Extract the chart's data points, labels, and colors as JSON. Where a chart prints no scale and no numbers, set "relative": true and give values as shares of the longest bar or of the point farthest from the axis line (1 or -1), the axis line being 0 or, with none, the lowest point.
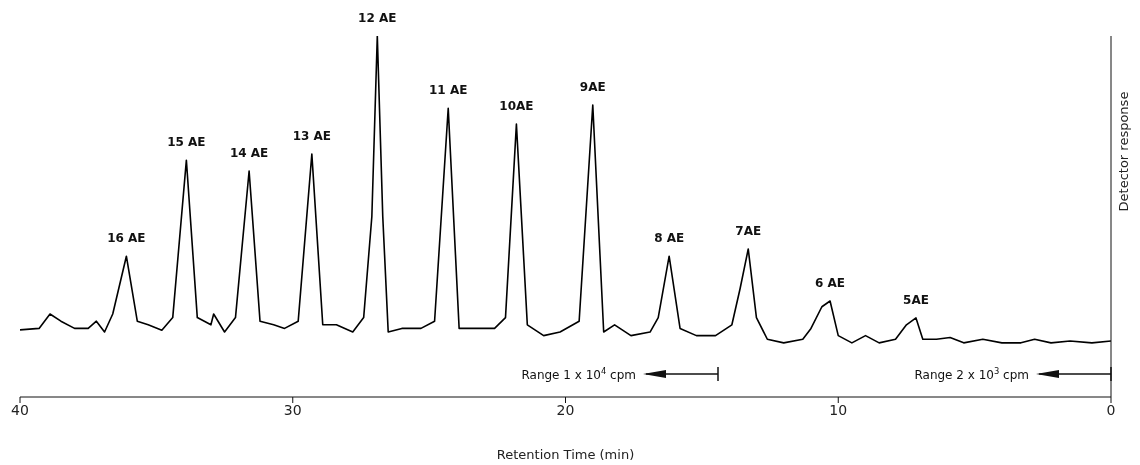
{
  "chart_data": {
    "type": "line",
    "xlabel": "Retention Time (min)",
    "ylabel": "Detector response",
    "relative": true,
    "xlim": [
      40,
      0
    ],
    "xticks": [
      40,
      30,
      20,
      10,
      0
    ],
    "grid": false,
    "legend": false,
    "marker": "none",
    "line_style": "solid",
    "x": [
      40,
      39.3,
      38.9,
      38.5,
      38.0,
      37.5,
      37.2,
      36.9,
      36.6,
      36.1,
      35.7,
      35.3,
      34.8,
      34.4,
      33.9,
      33.5,
      33.0,
      32.9,
      32.5,
      32.1,
      31.6,
      31.2,
      30.7,
      30.3,
      29.8,
      29.3,
      28.9,
      28.4,
      27.8,
      27.4,
      27.1,
      26.9,
      26.7,
      26.5,
      26.0,
      25.3,
      24.8,
      24.3,
      23.9,
      23.3,
      22.6,
      22.2,
      21.8,
      21.4,
      20.8,
      20.2,
      19.5,
      19.0,
      18.6,
      18.2,
      17.6,
      16.9,
      16.6,
      16.2,
      15.8,
      15.2,
      14.5,
      13.9,
      13.6,
      13.3,
      13.0,
      12.6,
      12.0,
      11.3,
      11.0,
      10.6,
      10.3,
      10.0,
      9.5,
      9.0,
      8.5,
      7.9,
      7.5,
      7.15,
      6.9,
      6.4,
      5.9,
      5.4,
      4.7,
      4.0,
      3.3,
      2.8,
      2.2,
      1.5,
      0.7,
      0
    ],
    "series": [
      {
        "color": "#000000",
        "values": [
          0.186,
          0.19,
          0.23,
          0.21,
          0.19,
          0.19,
          0.21,
          0.18,
          0.23,
          0.39,
          0.21,
          0.2,
          0.185,
          0.22,
          0.656,
          0.22,
          0.2,
          0.23,
          0.18,
          0.22,
          0.626,
          0.21,
          0.2,
          0.19,
          0.21,
          0.673,
          0.2,
          0.2,
          0.18,
          0.22,
          0.5,
          1.0,
          0.5,
          0.18,
          0.19,
          0.19,
          0.21,
          0.8,
          0.19,
          0.19,
          0.19,
          0.22,
          0.756,
          0.2,
          0.17,
          0.18,
          0.21,
          0.809,
          0.18,
          0.2,
          0.17,
          0.18,
          0.22,
          0.39,
          0.19,
          0.17,
          0.17,
          0.2,
          0.3,
          0.41,
          0.22,
          0.16,
          0.15,
          0.16,
          0.19,
          0.25,
          0.266,
          0.17,
          0.15,
          0.17,
          0.15,
          0.16,
          0.2,
          0.219,
          0.16,
          0.16,
          0.165,
          0.15,
          0.16,
          0.15,
          0.15,
          0.16,
          0.15,
          0.155,
          0.15,
          0.155
        ]
      }
    ],
    "annotations": [
      {
        "text": "16 AE",
        "x": 36.1,
        "y": 0.39
      },
      {
        "text": "15 AE",
        "x": 33.9,
        "y": 0.656
      },
      {
        "text": "14 AE",
        "x": 31.6,
        "y": 0.626
      },
      {
        "text": "13 AE",
        "x": 29.3,
        "y": 0.673
      },
      {
        "text": "12 AE",
        "x": 26.9,
        "y": 1.0
      },
      {
        "text": "11 AE",
        "x": 24.3,
        "y": 0.8
      },
      {
        "text": "10AE",
        "x": 21.8,
        "y": 0.756
      },
      {
        "text": "9AE",
        "x": 19.0,
        "y": 0.809
      },
      {
        "text": "8 AE",
        "x": 16.2,
        "y": 0.39
      },
      {
        "text": "7AE",
        "x": 13.3,
        "y": 0.41
      },
      {
        "text": "6 AE",
        "x": 10.3,
        "y": 0.266
      },
      {
        "text": "5AE",
        "x": 7.15,
        "y": 0.219
      },
      "Range 1 x 10$^{4}$ cpm",
      "Range 2 x 10$^{3}$ cpm"
    ]
  }
}
